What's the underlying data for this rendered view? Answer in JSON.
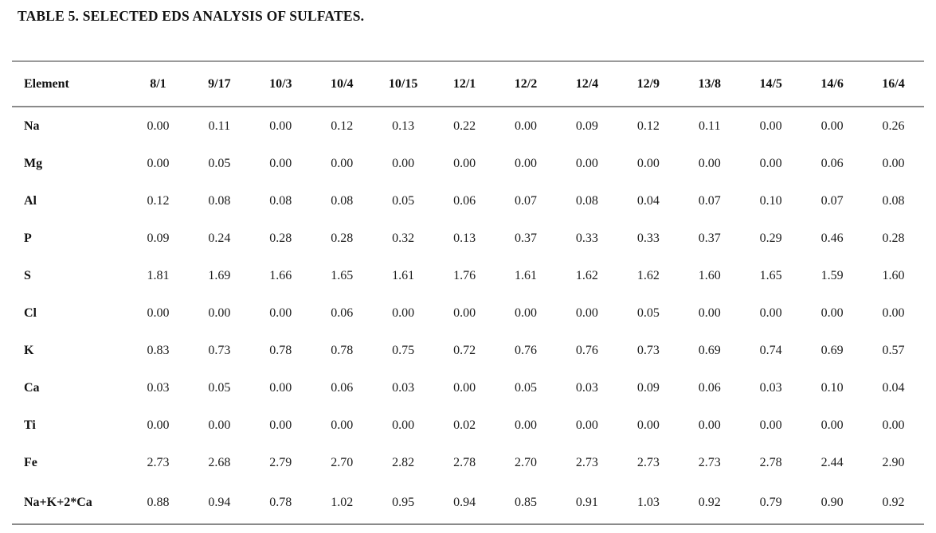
{
  "title": "TABLE 5. SELECTED EDS ANALYSIS OF SULFATES.",
  "table": {
    "columns": [
      "Element",
      "8/1",
      "9/17",
      "10/3",
      "10/4",
      "10/15",
      "12/1",
      "12/2",
      "12/4",
      "12/9",
      "13/8",
      "14/5",
      "14/6",
      "16/4"
    ],
    "rows": [
      {
        "element": "Na",
        "values": [
          "0.00",
          "0.11",
          "0.00",
          "0.12",
          "0.13",
          "0.22",
          "0.00",
          "0.09",
          "0.12",
          "0.11",
          "0.00",
          "0.00",
          "0.26"
        ]
      },
      {
        "element": "Mg",
        "values": [
          "0.00",
          "0.05",
          "0.00",
          "0.00",
          "0.00",
          "0.00",
          "0.00",
          "0.00",
          "0.00",
          "0.00",
          "0.00",
          "0.06",
          "0.00"
        ]
      },
      {
        "element": "Al",
        "values": [
          "0.12",
          "0.08",
          "0.08",
          "0.08",
          "0.05",
          "0.06",
          "0.07",
          "0.08",
          "0.04",
          "0.07",
          "0.10",
          "0.07",
          "0.08"
        ]
      },
      {
        "element": "P",
        "values": [
          "0.09",
          "0.24",
          "0.28",
          "0.28",
          "0.32",
          "0.13",
          "0.37",
          "0.33",
          "0.33",
          "0.37",
          "0.29",
          "0.46",
          "0.28"
        ]
      },
      {
        "element": "S",
        "values": [
          "1.81",
          "1.69",
          "1.66",
          "1.65",
          "1.61",
          "1.76",
          "1.61",
          "1.62",
          "1.62",
          "1.60",
          "1.65",
          "1.59",
          "1.60"
        ]
      },
      {
        "element": "Cl",
        "values": [
          "0.00",
          "0.00",
          "0.00",
          "0.06",
          "0.00",
          "0.00",
          "0.00",
          "0.00",
          "0.05",
          "0.00",
          "0.00",
          "0.00",
          "0.00"
        ]
      },
      {
        "element": "K",
        "values": [
          "0.83",
          "0.73",
          "0.78",
          "0.78",
          "0.75",
          "0.72",
          "0.76",
          "0.76",
          "0.73",
          "0.69",
          "0.74",
          "0.69",
          "0.57"
        ]
      },
      {
        "element": "Ca",
        "values": [
          "0.03",
          "0.05",
          "0.00",
          "0.06",
          "0.03",
          "0.00",
          "0.05",
          "0.03",
          "0.09",
          "0.06",
          "0.03",
          "0.10",
          "0.04"
        ]
      },
      {
        "element": "Ti",
        "values": [
          "0.00",
          "0.00",
          "0.00",
          "0.00",
          "0.00",
          "0.02",
          "0.00",
          "0.00",
          "0.00",
          "0.00",
          "0.00",
          "0.00",
          "0.00"
        ]
      },
      {
        "element": "Fe",
        "values": [
          "2.73",
          "2.68",
          "2.79",
          "2.70",
          "2.82",
          "2.78",
          "2.70",
          "2.73",
          "2.73",
          "2.73",
          "2.78",
          "2.44",
          "2.90"
        ]
      },
      {
        "element": "Na+K+2*Ca",
        "values": [
          "0.88",
          "0.94",
          "0.78",
          "1.02",
          "0.95",
          "0.94",
          "0.85",
          "0.91",
          "1.03",
          "0.92",
          "0.79",
          "0.90",
          "0.92"
        ]
      }
    ]
  },
  "colors": {
    "rule_gray": "#8a8a8a",
    "text_black": "#141414",
    "background": "#ffffff"
  }
}
